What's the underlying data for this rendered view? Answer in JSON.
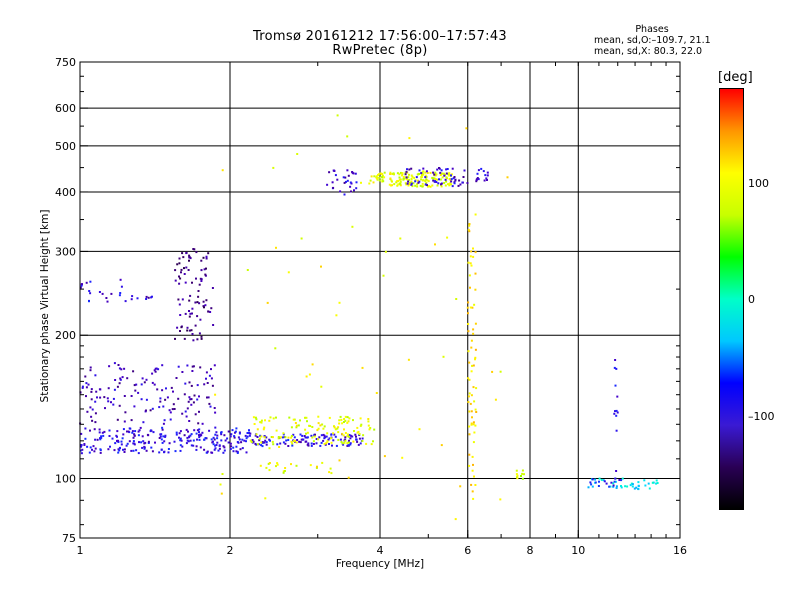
{
  "chart_data": {
    "type": "scatter",
    "title_line1": "Tromsø 20161212 17:56:00–17:57:43",
    "title_line2": "RwPretec (8p)",
    "phases_title": "Phases",
    "phases_o": "mean, sd,O:–109.7, 21.1",
    "phases_x": "mean, sd,X: 80.3, 22.0",
    "xlabel": "Frequency [MHz]",
    "ylabel": "Stationary phase Virtual Height [km]",
    "xscale": "log",
    "yscale": "log",
    "xlim": [
      1,
      16
    ],
    "ylim": [
      75,
      750
    ],
    "x_ticks": [
      "1",
      "2",
      "4",
      "6",
      "8",
      "10",
      "16"
    ],
    "y_ticks": [
      "75",
      "100",
      "200",
      "300",
      "400",
      "500",
      "600",
      "750"
    ],
    "grid": true,
    "colorbar": {
      "unit": "[deg]",
      "range": [
        -180,
        180
      ],
      "ticks": [
        "100",
        "0",
        "–100"
      ],
      "colors": [
        "#000000",
        "#2a0055",
        "#3a1ad4",
        "#0000ff",
        "#00c8ff",
        "#00ffc8",
        "#00ff00",
        "#c8ff00",
        "#ffff00",
        "#ff9600",
        "#ff0000"
      ]
    },
    "series": [
      {
        "x_range": [
          1.0,
          2.2
        ],
        "h_range": [
          113,
          128
        ],
        "phase": -110,
        "n": 260
      },
      {
        "x_range": [
          1.0,
          1.9
        ],
        "h_range": [
          130,
          175
        ],
        "phase": -125,
        "n": 150
      },
      {
        "x_range": [
          1.0,
          1.25
        ],
        "h_range": [
          235,
          262
        ],
        "phase": -110,
        "n": 20
      },
      {
        "x_range": [
          1.25,
          1.4
        ],
        "h_range": [
          238,
          242
        ],
        "phase": -125,
        "n": 8
      },
      {
        "x_range": [
          1.55,
          1.85
        ],
        "h_range": [
          195,
          305
        ],
        "phase": -140,
        "n": 90
      },
      {
        "x_range": [
          2.2,
          3.7
        ],
        "h_range": [
          117,
          124
        ],
        "phase": -110,
        "n": 120
      },
      {
        "x_range": [
          2.2,
          3.9
        ],
        "h_range": [
          118,
          135
        ],
        "phase": 90,
        "n": 130
      },
      {
        "x_range": [
          2.3,
          3.2
        ],
        "h_range": [
          102,
          108
        ],
        "phase": 90,
        "n": 20
      },
      {
        "x_range": [
          3.1,
          3.6
        ],
        "h_range": [
          395,
          445
        ],
        "phase": -120,
        "n": 30
      },
      {
        "x_range": [
          3.8,
          5.6
        ],
        "h_range": [
          410,
          440
        ],
        "phase": 90,
        "n": 160
      },
      {
        "x_range": [
          4.5,
          6.0
        ],
        "h_range": [
          410,
          450
        ],
        "phase": -120,
        "n": 60
      },
      {
        "x_range": [
          6.0,
          6.25
        ],
        "h_range": [
          90,
          360
        ],
        "phase": 110,
        "n": 70
      },
      {
        "x_range": [
          6.2,
          6.6
        ],
        "h_range": [
          420,
          450
        ],
        "phase": -120,
        "n": 15
      },
      {
        "x_range": [
          7.5,
          7.8
        ],
        "h_range": [
          98,
          104
        ],
        "phase": 80,
        "n": 10
      },
      {
        "x_range": [
          10.2,
          14.5
        ],
        "h_range": [
          95,
          100
        ],
        "phase": -20,
        "n": 40
      },
      {
        "x_range": [
          10.5,
          12.2
        ],
        "h_range": [
          96,
          100
        ],
        "phase": -100,
        "n": 15
      },
      {
        "x_range": [
          11.8,
          12.0
        ],
        "h_range": [
          102,
          180
        ],
        "phase": -110,
        "n": 12
      },
      {
        "x_range": [
          1.8,
          7.5
        ],
        "h_range": [
          80,
          600
        ],
        "phase": 100,
        "n": 60
      }
    ]
  }
}
